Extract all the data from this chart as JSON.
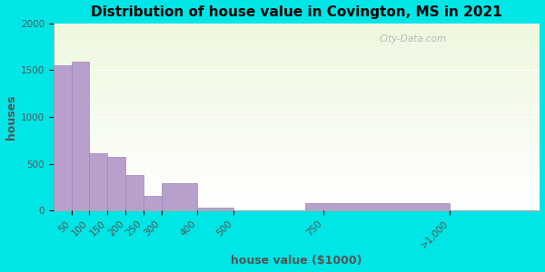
{
  "title": "Distribution of house value in Covington, MS in 2021",
  "xlabel": "house value ($1000)",
  "ylabel": "houses",
  "tick_labels": [
    "50",
    "100",
    "150",
    "200",
    "250",
    "300",
    "400",
    "500",
    "750",
    ">1,000"
  ],
  "bar_positions": [
    50,
    100,
    150,
    200,
    250,
    300,
    400,
    500,
    750,
    1100
  ],
  "bar_widths": [
    50,
    50,
    50,
    50,
    50,
    50,
    100,
    100,
    250,
    400
  ],
  "values": [
    1550,
    1590,
    610,
    575,
    380,
    155,
    295,
    30,
    0,
    75
  ],
  "bar_color": "#b8a0cc",
  "bar_edge_color": "#9988bb",
  "ylim": [
    0,
    2000
  ],
  "xlim": [
    0,
    1350
  ],
  "yticks": [
    0,
    500,
    1000,
    1500,
    2000
  ],
  "bg_outer": "#00e5e5",
  "title_fontsize": 11,
  "axis_label_fontsize": 9,
  "tick_fontsize": 7.5,
  "watermark": "City-Data.com"
}
